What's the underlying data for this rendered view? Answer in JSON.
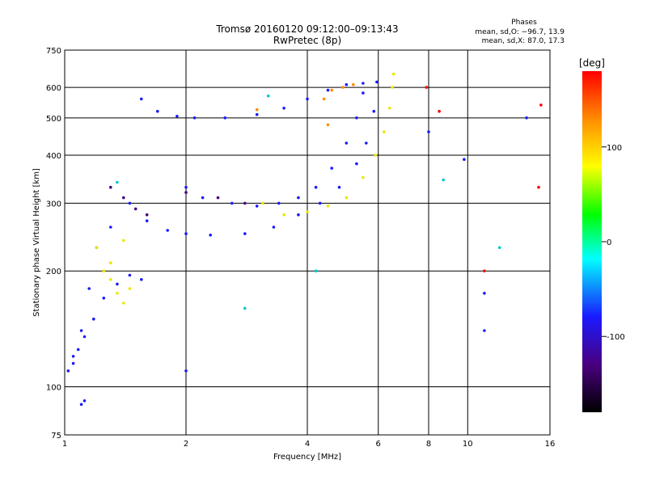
{
  "chart_data": {
    "type": "scatter",
    "title": "Tromsø 20160120 09:12:00–09:13:43",
    "subtitle": "RwPretec (8p)",
    "xlabel": "Frequency [MHz]",
    "ylabel": "Stationary phase Virtual Height [km]",
    "x_scale": "log",
    "y_scale": "log",
    "xlim": [
      1,
      16
    ],
    "ylim": [
      75,
      750
    ],
    "x_ticks": [
      1,
      2,
      4,
      6,
      8,
      10,
      16
    ],
    "y_ticks": [
      75,
      100,
      200,
      300,
      400,
      500,
      600,
      750
    ],
    "grid": true,
    "colorbar": {
      "label": "[deg]",
      "range": [
        -180,
        180
      ],
      "ticks": [
        100,
        0,
        -100
      ],
      "colors": [
        "#000000",
        "#4a0080",
        "#1a1aff",
        "#00ffff",
        "#00ff00",
        "#ffff00",
        "#ff8c00",
        "#ff0000"
      ]
    },
    "stats": {
      "heading": "Phases",
      "line_o": "mean, sd,O: −96.7, 13.9",
      "line_x": "mean, sd,X:  87.0, 17.3"
    },
    "series": [
      {
        "color": "#1a1aff",
        "points": [
          [
            1.05,
            120
          ],
          [
            1.1,
            140
          ],
          [
            1.15,
            180
          ],
          [
            1.2,
            230
          ],
          [
            1.3,
            260
          ],
          [
            1.45,
            300
          ],
          [
            1.6,
            270
          ],
          [
            1.8,
            255
          ],
          [
            2.0,
            250
          ],
          [
            2.3,
            248
          ],
          [
            2.8,
            250
          ],
          [
            3.3,
            260
          ],
          [
            3.8,
            280
          ],
          [
            4.3,
            300
          ],
          [
            4.8,
            330
          ],
          [
            5.3,
            380
          ],
          [
            5.6,
            430
          ],
          [
            5.85,
            520
          ],
          [
            5.95,
            620
          ]
        ]
      },
      {
        "color": "#1a1aff",
        "points": [
          [
            1.55,
            560
          ],
          [
            1.7,
            520
          ],
          [
            1.9,
            505
          ],
          [
            2.1,
            500
          ],
          [
            2.5,
            500
          ],
          [
            3.0,
            510
          ],
          [
            3.5,
            530
          ],
          [
            4.0,
            560
          ],
          [
            4.5,
            590
          ],
          [
            5.0,
            610
          ],
          [
            5.5,
            615
          ]
        ]
      },
      {
        "color": "#1a1aff",
        "points": [
          [
            2.0,
            330
          ],
          [
            2.2,
            310
          ],
          [
            2.6,
            300
          ],
          [
            3.0,
            295
          ],
          [
            3.4,
            300
          ],
          [
            3.8,
            310
          ],
          [
            4.2,
            330
          ],
          [
            4.6,
            370
          ],
          [
            5.0,
            430
          ],
          [
            5.3,
            500
          ],
          [
            5.5,
            580
          ]
        ]
      },
      {
        "color": "#1a1aff",
        "points": [
          [
            1.02,
            110
          ],
          [
            1.05,
            115
          ],
          [
            1.08,
            125
          ],
          [
            1.12,
            135
          ],
          [
            1.18,
            150
          ],
          [
            1.25,
            170
          ],
          [
            1.35,
            185
          ],
          [
            1.45,
            195
          ],
          [
            1.55,
            190
          ]
        ]
      },
      {
        "color": "#e8e800",
        "points": [
          [
            3.1,
            300
          ],
          [
            3.5,
            280
          ],
          [
            4.0,
            285
          ],
          [
            4.5,
            295
          ],
          [
            5.0,
            310
          ],
          [
            5.5,
            350
          ],
          [
            5.9,
            400
          ],
          [
            6.2,
            460
          ],
          [
            6.4,
            530
          ],
          [
            6.5,
            600
          ],
          [
            6.55,
            650
          ]
        ]
      },
      {
        "color": "#e8e800",
        "points": [
          [
            1.2,
            230
          ],
          [
            1.25,
            200
          ],
          [
            1.3,
            190
          ],
          [
            1.35,
            175
          ],
          [
            1.4,
            165
          ],
          [
            1.45,
            180
          ],
          [
            1.3,
            210
          ],
          [
            1.4,
            240
          ]
        ]
      },
      {
        "color": "#ff8c00",
        "points": [
          [
            4.4,
            560
          ],
          [
            4.6,
            590
          ],
          [
            4.9,
            600
          ],
          [
            5.2,
            610
          ],
          [
            4.5,
            480
          ],
          [
            3.0,
            525
          ]
        ]
      },
      {
        "color": "#4a0080",
        "points": [
          [
            1.3,
            330
          ],
          [
            1.4,
            310
          ],
          [
            1.5,
            290
          ],
          [
            1.6,
            280
          ],
          [
            2.0,
            320
          ],
          [
            2.4,
            310
          ],
          [
            2.8,
            300
          ]
        ]
      },
      {
        "color": "#00c8c8",
        "points": [
          [
            1.35,
            340
          ],
          [
            3.2,
            570
          ],
          [
            4.2,
            200
          ],
          [
            2.8,
            160
          ],
          [
            8.7,
            345
          ],
          [
            12.0,
            230
          ]
        ]
      },
      {
        "color": "#ff0000",
        "points": [
          [
            7.9,
            600
          ],
          [
            8.5,
            520
          ],
          [
            11.0,
            200
          ],
          [
            15.0,
            330
          ],
          [
            15.2,
            540
          ]
        ]
      },
      {
        "color": "#1a1aff",
        "points": [
          [
            2.0,
            110
          ],
          [
            1.1,
            90
          ],
          [
            1.12,
            92
          ],
          [
            8.0,
            460
          ],
          [
            9.8,
            390
          ],
          [
            11.0,
            140
          ],
          [
            11.0,
            175
          ],
          [
            14.0,
            500
          ]
        ]
      }
    ]
  }
}
